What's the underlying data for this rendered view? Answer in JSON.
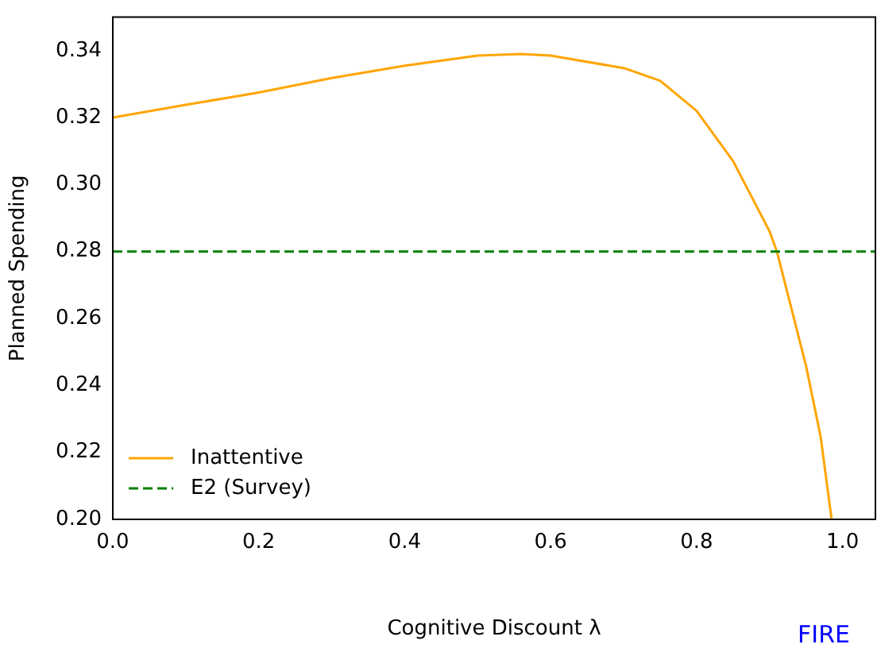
{
  "chart_data": {
    "type": "line",
    "xlabel": "Cognitive Discount λ",
    "ylabel": "Planned Spending",
    "series": [
      {
        "name": "Inattentive",
        "color": "#ffa500",
        "x": [
          0,
          0.1,
          0.2,
          0.3,
          0.4,
          0.5,
          0.56,
          0.6,
          0.7,
          0.75,
          0.8,
          0.85,
          0.9,
          0.91,
          0.95,
          0.97,
          0.985
        ],
        "values": [
          0.32,
          0.3238,
          0.3275,
          0.3318,
          0.3355,
          0.3385,
          0.339,
          0.3385,
          0.3348,
          0.331,
          0.322,
          0.307,
          0.286,
          0.28,
          0.2458,
          0.2246,
          0.2
        ]
      }
    ],
    "ref_lines": [
      {
        "axis": "y",
        "value": 0.28,
        "label": "E2 (Survey)",
        "color": "#008000",
        "line_style": "dashed"
      }
    ],
    "xlim": [
      0,
      1.045
    ],
    "xticks": [
      {
        "value": 0,
        "label": "0.0"
      },
      {
        "value": 0.2,
        "label": "0.2"
      },
      {
        "value": 0.4,
        "label": "0.4"
      },
      {
        "value": 0.6,
        "label": "0.6"
      },
      {
        "value": 0.8,
        "label": "0.8"
      },
      {
        "value": 1,
        "label": "1.0"
      }
    ],
    "ylim": [
      0.2,
      0.35
    ],
    "yticks": [
      {
        "value": 0.2,
        "label": "0.20"
      },
      {
        "value": 0.22,
        "label": "0.22"
      },
      {
        "value": 0.24,
        "label": "0.24"
      },
      {
        "value": 0.26,
        "label": "0.26"
      },
      {
        "value": 0.28,
        "label": "0.28"
      },
      {
        "value": 0.3,
        "label": "0.30"
      },
      {
        "value": 0.32,
        "label": "0.32"
      },
      {
        "value": 0.34,
        "label": "0.34"
      }
    ],
    "grid": false,
    "legend": "bottom left",
    "marker": "none",
    "line_style": "solid",
    "annotations": [
      "FIRE"
    ]
  }
}
